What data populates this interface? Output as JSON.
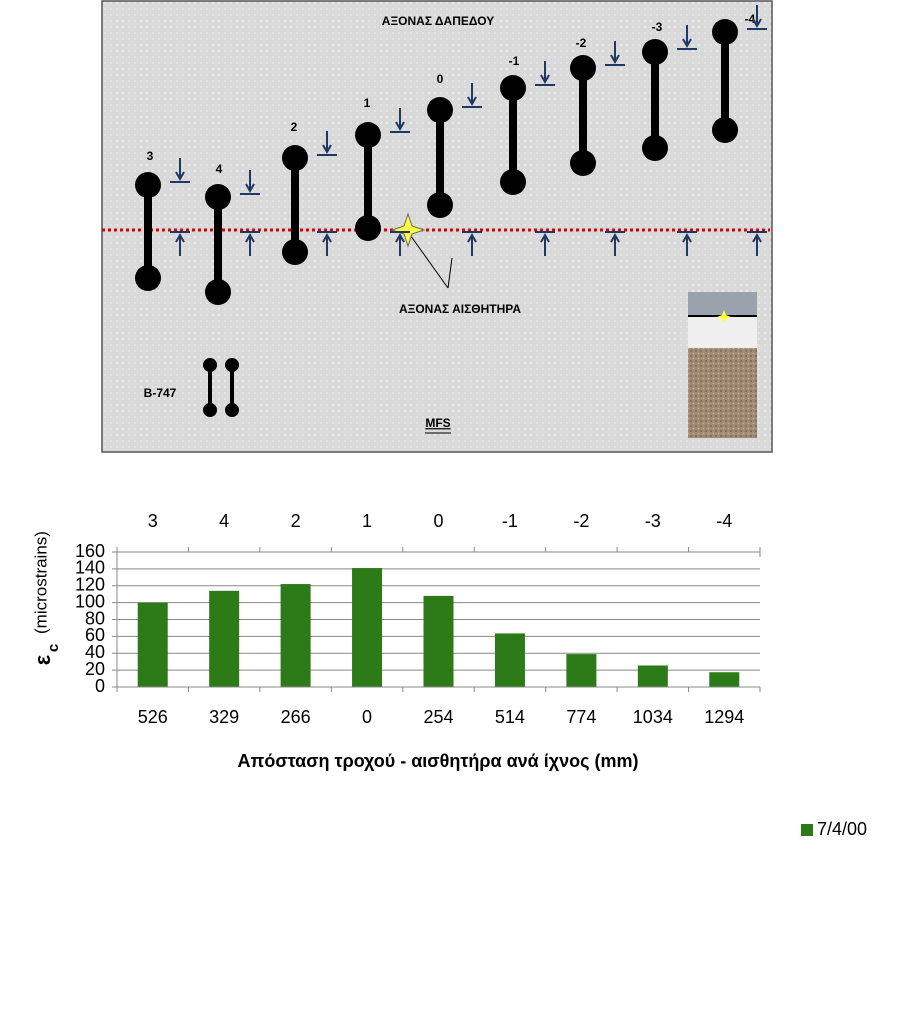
{
  "diagram": {
    "title": "ΑΞΟΝΑΣ ΔΑΠΕΔΟΥ",
    "sensor_label": "ΑΞΟΝΑΣ ΑΙΣΘΗΤΗΡΑ",
    "aircraft": "B-747",
    "caption": "MFS",
    "positions": [
      "3",
      "4",
      "2",
      "1",
      "0",
      "-1",
      "-2",
      "-3",
      "-4"
    ]
  },
  "chart_data": {
    "type": "bar",
    "ylabel_symbol": "ε",
    "ylabel_subscript": "c",
    "ylabel": "(microstrains)",
    "xlabel": "Απόσταση τροχού - αισθητήρα ανά ίχνος (mm)",
    "categories": [
      "526",
      "329",
      "266",
      "0",
      "254",
      "514",
      "774",
      "1034",
      "1294"
    ],
    "top_categories": [
      "3",
      "4",
      "2",
      "1",
      "0",
      "-1",
      "-2",
      "-3",
      "-4"
    ],
    "series": [
      {
        "name": "7/4/00",
        "color": "#2d7a19",
        "values": [
          100,
          114,
          122,
          141,
          108,
          63.5,
          39,
          25.5,
          17.5
        ]
      }
    ],
    "ylim": [
      0,
      160
    ],
    "yticks": [
      0,
      20,
      40,
      60,
      80,
      100,
      120,
      140,
      160
    ],
    "grid": true,
    "legend": "right"
  }
}
